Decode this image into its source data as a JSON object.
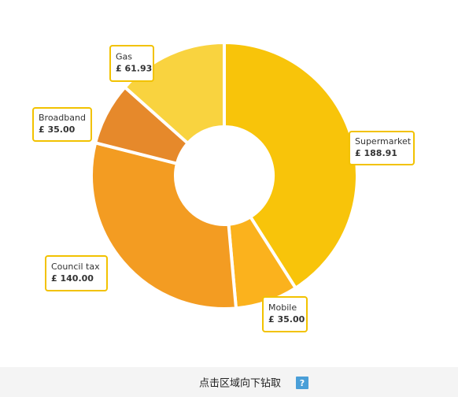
{
  "chart_data": {
    "type": "pie",
    "categories": [
      "Supermarket",
      "Mobile",
      "Council tax",
      "Broadband",
      "Gas"
    ],
    "values": [
      188.91,
      35.0,
      140.0,
      35.0,
      61.93
    ],
    "value_labels": [
      "£ 188.91",
      "£ 35.00",
      "£ 140.00",
      "£ 35.00",
      "£ 61.93"
    ],
    "colors": [
      "#f8c40a",
      "#fbb21d",
      "#f39c22",
      "#e6892b",
      "#f9d33f"
    ]
  },
  "footer": {
    "hint": "点击区域向下钻取",
    "help": "?"
  }
}
